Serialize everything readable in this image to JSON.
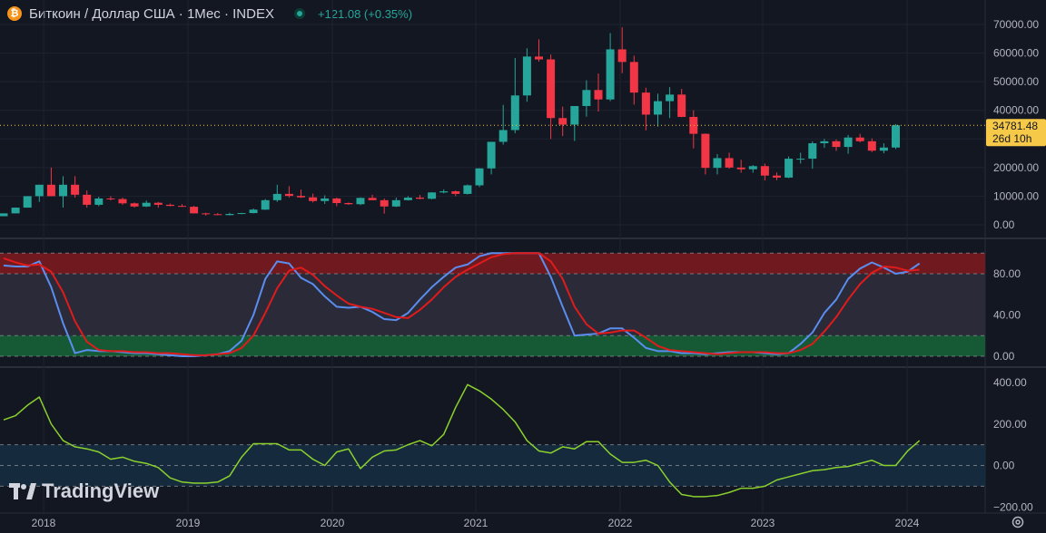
{
  "header": {
    "icon": "bitcoin-icon",
    "title": "Биткоин / Доллар США · 1Мес · INDEX",
    "change": "+121.08 (+0.35%)",
    "change_color": "#26a69a"
  },
  "brand": {
    "name": "TradingView",
    "icon": "tradingview-logo-icon"
  },
  "last_price": {
    "value": "34781.48",
    "countdown": "26d 10h",
    "color": "#f7c948"
  },
  "colors": {
    "up": "#26a69a",
    "down": "#f23645",
    "stoch_k": "#5b8def",
    "stoch_d": "#e01b1b",
    "cci": "#8bd12e"
  },
  "chart_data": [
    {
      "type": "candlestick",
      "id": "price",
      "x_ticks": [
        "2018",
        "2019",
        "2020",
        "2021",
        "2022",
        "2023",
        "2024"
      ],
      "y_ticks": [
        "0.00",
        "10000.00",
        "20000.00",
        "30000.00",
        "40000.00",
        "50000.00",
        "60000.00",
        "70000.00"
      ],
      "ylim": [
        -2500,
        72000
      ],
      "candles": [
        [
          3000,
          3000,
          4000,
          4000
        ],
        [
          4000,
          4000,
          6000,
          6000
        ],
        [
          6000,
          6000,
          10000,
          10000
        ],
        [
          10000,
          8000,
          14000,
          14000
        ],
        [
          14000,
          10000,
          20000,
          10000
        ],
        [
          10000,
          6000,
          17000,
          14000
        ],
        [
          14000,
          9500,
          17000,
          10500
        ],
        [
          10500,
          6000,
          12000,
          7000
        ],
        [
          7000,
          6500,
          9800,
          9200
        ],
        [
          9200,
          8500,
          10000,
          9000
        ],
        [
          9000,
          7000,
          9500,
          7500
        ],
        [
          7500,
          6000,
          7800,
          6400
        ],
        [
          6400,
          6200,
          8500,
          7700
        ],
        [
          7700,
          6000,
          8000,
          7000
        ],
        [
          7000,
          6500,
          7400,
          6600
        ],
        [
          6600,
          6300,
          7200,
          6300
        ],
        [
          6300,
          4000,
          6600,
          4000
        ],
        [
          4000,
          3200,
          4200,
          3700
        ],
        [
          3700,
          3400,
          4100,
          3400
        ],
        [
          3400,
          3300,
          4200,
          3800
        ],
        [
          3800,
          3700,
          4200,
          4100
        ],
        [
          4100,
          4000,
          5700,
          5300
        ],
        [
          5300,
          5200,
          9000,
          8600
        ],
        [
          8600,
          8000,
          14000,
          10800
        ],
        [
          10800,
          9500,
          13500,
          10100
        ],
        [
          10100,
          9400,
          12300,
          9600
        ],
        [
          9600,
          7800,
          10900,
          8300
        ],
        [
          8300,
          7300,
          10300,
          9200
        ],
        [
          9200,
          6500,
          9500,
          7600
        ],
        [
          7600,
          7000,
          7800,
          7200
        ],
        [
          7200,
          6900,
          9600,
          9400
        ],
        [
          9400,
          8600,
          10500,
          8600
        ],
        [
          8600,
          3900,
          9200,
          6400
        ],
        [
          6400,
          6200,
          9500,
          8600
        ],
        [
          8600,
          8500,
          10000,
          9500
        ],
        [
          9500,
          8900,
          10400,
          9100
        ],
        [
          9100,
          8900,
          11400,
          11300
        ],
        [
          11300,
          11000,
          12400,
          11700
        ],
        [
          11700,
          10000,
          12000,
          10800
        ],
        [
          10800,
          10600,
          14100,
          13800
        ],
        [
          13800,
          13200,
          19800,
          19700
        ],
        [
          19700,
          17600,
          29000,
          29000
        ],
        [
          29000,
          28000,
          41900,
          33100
        ],
        [
          33100,
          32000,
          58300,
          45200
        ],
        [
          45200,
          43000,
          61700,
          58800
        ],
        [
          58800,
          57000,
          64800,
          57800
        ],
        [
          57800,
          30000,
          59500,
          37300
        ],
        [
          37300,
          31000,
          41300,
          35000
        ],
        [
          35000,
          29300,
          36700,
          41500
        ],
        [
          41500,
          37800,
          50500,
          47100
        ],
        [
          47100,
          39600,
          52900,
          43800
        ],
        [
          43800,
          43200,
          67000,
          61300
        ],
        [
          61300,
          53000,
          69000,
          56900
        ],
        [
          56900,
          42000,
          59100,
          46200
        ],
        [
          46200,
          33000,
          47900,
          38500
        ],
        [
          38500,
          34300,
          45800,
          43200
        ],
        [
          43200,
          37300,
          48100,
          45500
        ],
        [
          45500,
          37600,
          47500,
          37700
        ],
        [
          37700,
          26700,
          40000,
          31800
        ],
        [
          31800,
          17600,
          31900,
          19900
        ],
        [
          19900,
          17600,
          24700,
          23300
        ],
        [
          23300,
          19600,
          25200,
          20000
        ],
        [
          20000,
          18200,
          22700,
          19400
        ],
        [
          19400,
          18200,
          20900,
          20500
        ],
        [
          20500,
          15500,
          21400,
          17200
        ],
        [
          17200,
          15600,
          18300,
          16500
        ],
        [
          16500,
          16300,
          23900,
          23100
        ],
        [
          23100,
          21400,
          25200,
          23100
        ],
        [
          23100,
          19600,
          29200,
          28500
        ],
        [
          28500,
          26900,
          30000,
          29200
        ],
        [
          29200,
          25800,
          29800,
          27200
        ],
        [
          27200,
          24800,
          31400,
          30500
        ],
        [
          30500,
          28800,
          31800,
          29200
        ],
        [
          29200,
          25400,
          30200,
          25900
        ],
        [
          25900,
          25000,
          28500,
          27000
        ],
        [
          27000,
          26500,
          35200,
          34781
        ]
      ]
    },
    {
      "type": "line",
      "id": "stochastic",
      "y_ticks": [
        "0.00",
        "40.00",
        "80.00"
      ],
      "ylim": [
        -1,
        103
      ],
      "bands": {
        "upper": 80,
        "lower": 20
      },
      "series": [
        {
          "values": [
            88,
            87,
            87,
            92,
            67,
            32,
            3,
            6,
            5,
            5,
            4,
            3,
            3,
            2,
            1,
            0,
            0,
            1,
            2,
            5,
            15,
            40,
            75,
            92,
            90,
            76,
            70,
            58,
            48,
            47,
            48,
            43,
            36,
            35,
            42,
            55,
            67,
            77,
            86,
            89,
            97,
            100,
            100,
            100,
            100,
            100,
            77,
            48,
            20,
            21,
            22,
            27,
            27,
            18,
            8,
            5,
            5,
            3,
            3,
            2,
            3,
            4,
            4,
            4,
            3,
            2,
            3,
            12,
            23,
            42,
            55,
            75,
            85,
            91,
            86,
            80,
            82,
            90
          ]
        },
        {
          "values": [
            95,
            91,
            88,
            89,
            82,
            62,
            34,
            14,
            6,
            5,
            5,
            4,
            4,
            3,
            3,
            2,
            1,
            1,
            2,
            3,
            8,
            20,
            42,
            66,
            83,
            86,
            79,
            68,
            59,
            51,
            48,
            46,
            42,
            38,
            37,
            45,
            55,
            67,
            77,
            84,
            90,
            96,
            99,
            100,
            100,
            100,
            92,
            75,
            48,
            31,
            22,
            23,
            25,
            25,
            18,
            10,
            6,
            5,
            4,
            3,
            2,
            3,
            4,
            4,
            4,
            3,
            3,
            6,
            12,
            24,
            38,
            55,
            70,
            81,
            87,
            86,
            83,
            84
          ]
        }
      ]
    },
    {
      "type": "line",
      "id": "cci",
      "y_ticks": [
        "−200.00",
        "0.00",
        "200.00",
        "400.00"
      ],
      "ylim": [
        -205,
        430
      ],
      "bands": {
        "upper": 100,
        "lower": -100
      },
      "series": [
        {
          "values": [
            220,
            240,
            290,
            330,
            200,
            120,
            90,
            80,
            65,
            30,
            40,
            20,
            10,
            -10,
            -60,
            -80,
            -85,
            -85,
            -80,
            -50,
            40,
            105,
            105,
            105,
            75,
            75,
            30,
            0,
            65,
            80,
            -15,
            40,
            70,
            75,
            100,
            120,
            95,
            150,
            280,
            390,
            360,
            320,
            270,
            210,
            120,
            70,
            60,
            90,
            80,
            115,
            115,
            55,
            15,
            15,
            25,
            0,
            -80,
            -140,
            -150,
            -150,
            -145,
            -130,
            -110,
            -110,
            -100,
            -70,
            -55,
            -40,
            -25,
            -20,
            -10,
            -5,
            10,
            25,
            0,
            0,
            70,
            120
          ]
        }
      ]
    }
  ]
}
